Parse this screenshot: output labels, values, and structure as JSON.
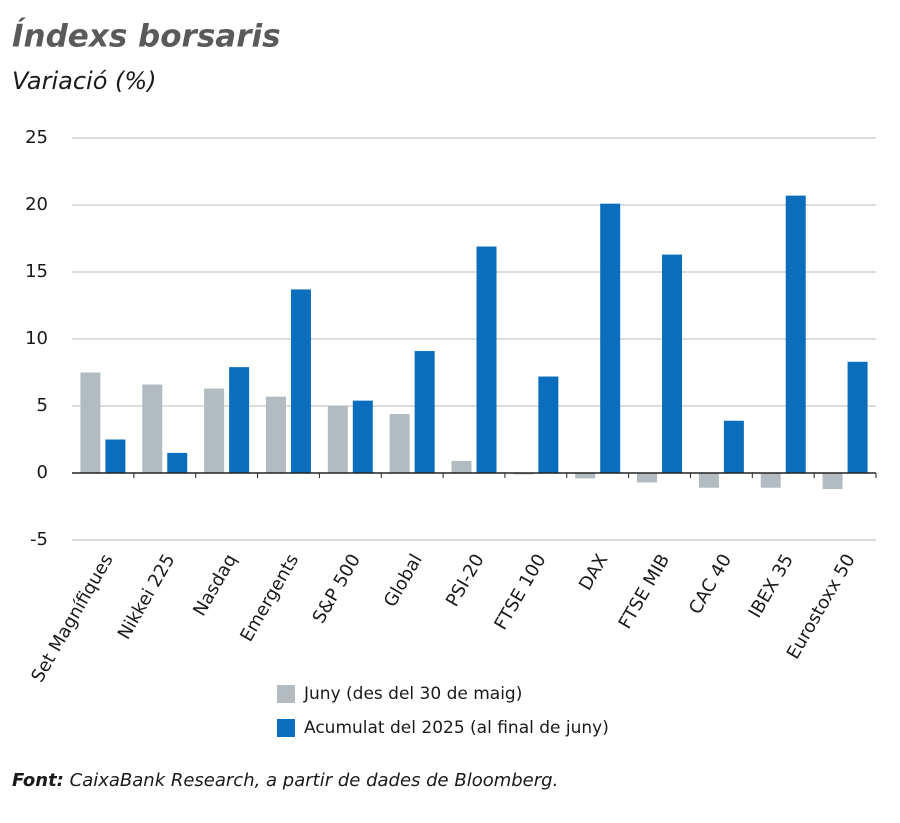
{
  "chart_data": {
    "type": "bar",
    "title": "Índexs borsaris",
    "subtitle": "Variació (%)",
    "categories": [
      "Set Magnífiques",
      "Nikkei 225",
      "Nasdaq",
      "Emergents",
      "S&P 500",
      "Global",
      "PSI-20",
      "FTSE 100",
      "DAX",
      "FTSE MIB",
      "CAC 40",
      "IBEX 35",
      "Eurostoxx 50"
    ],
    "series": [
      {
        "name": "Juny (des del 30 de maig)",
        "color": "#b2bcc0",
        "values": [
          7.5,
          6.6,
          6.3,
          5.7,
          5.0,
          4.4,
          0.9,
          -0.1,
          -0.4,
          -0.7,
          -1.1,
          -1.1,
          -1.2
        ]
      },
      {
        "name": "Acumulat del 2025 (al final de juny)",
        "color": "#0a6ebd",
        "values": [
          2.5,
          1.5,
          7.9,
          13.7,
          5.4,
          9.1,
          16.9,
          7.2,
          20.1,
          16.3,
          3.9,
          20.7,
          8.3
        ]
      }
    ],
    "ylim": [
      -5,
      25
    ],
    "yticks": [
      -5,
      0,
      5,
      10,
      15,
      20,
      25
    ],
    "grid": true,
    "source_label": "Font:",
    "source_text": "CaixaBank Research, a partir de dades de Bloomberg."
  }
}
